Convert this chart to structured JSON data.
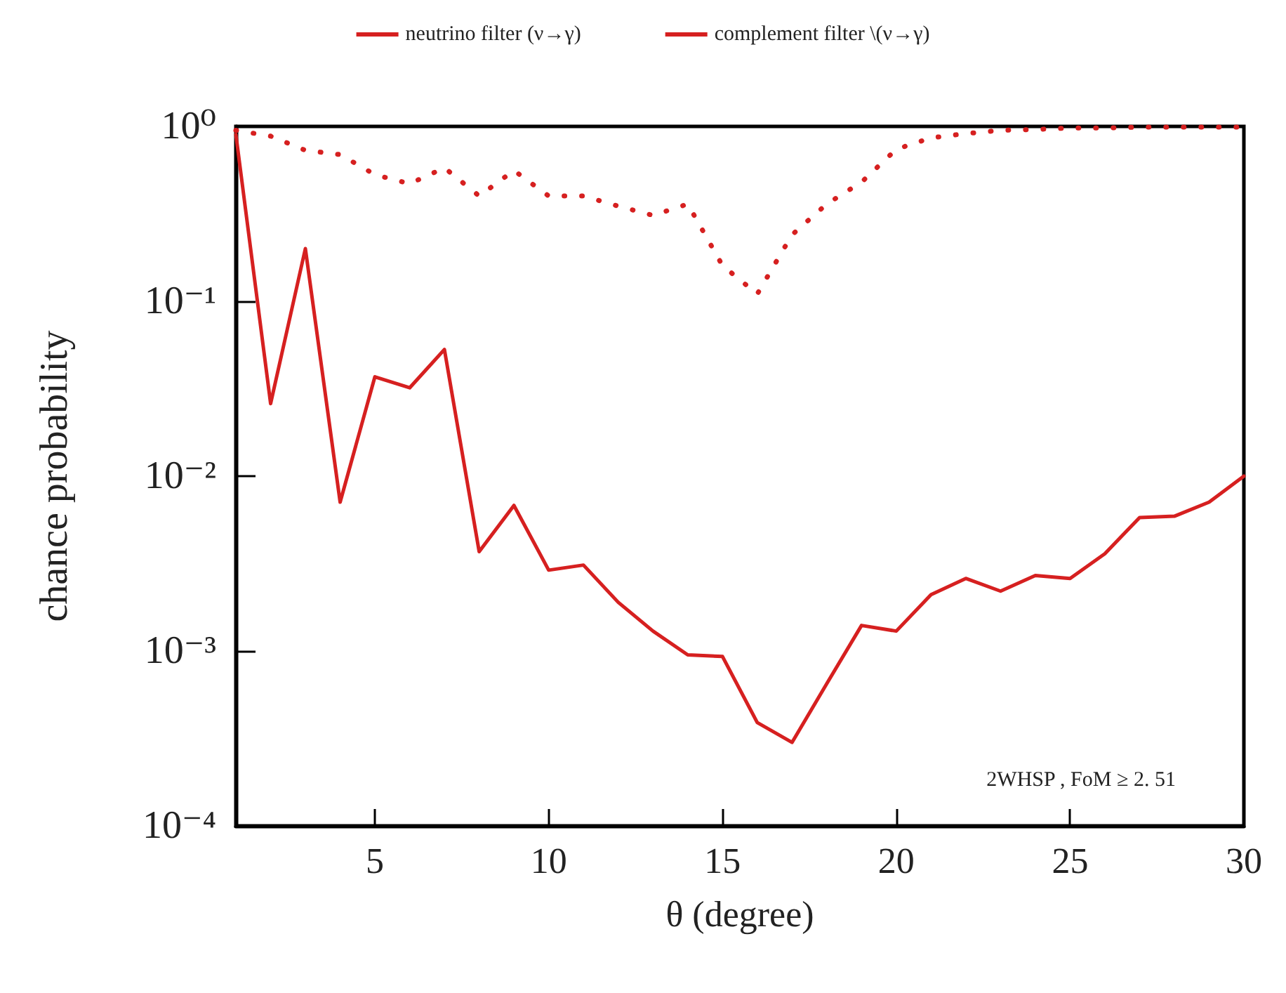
{
  "chart_data": {
    "type": "line",
    "xlabel": "θ (degree)",
    "ylabel": "chance probability",
    "log": "y",
    "legend": "top",
    "marker": "none",
    "grid": false,
    "xlim": [
      1,
      30
    ],
    "xticks": [
      5,
      10,
      15,
      20,
      25,
      30
    ],
    "ylim": [
      0.0001,
      1
    ],
    "yticks": [
      {
        "value": 1,
        "label": "10⁰"
      },
      {
        "value": 0.1,
        "label": "10⁻¹"
      },
      {
        "value": 0.01,
        "label": "10⁻²"
      },
      {
        "value": 0.001,
        "label": "10⁻³"
      },
      {
        "value": 0.0001,
        "label": "10⁻⁴"
      }
    ],
    "x": [
      1,
      2,
      3,
      4,
      5,
      6,
      7,
      8,
      9,
      10,
      11,
      12,
      13,
      14,
      15,
      16,
      17,
      18,
      19,
      20,
      21,
      22,
      23,
      24,
      25,
      26,
      27,
      28,
      29,
      30
    ],
    "series": [
      {
        "name": "neutrino filter (ν→γ)",
        "color": "#d62020",
        "line_style": "solid",
        "values": [
          0.9,
          0.026,
          0.2,
          0.0071,
          0.037,
          0.032,
          0.053,
          0.0037,
          0.0068,
          0.0029,
          0.0031,
          0.0019,
          0.0013,
          0.00095,
          0.00093,
          0.00039,
          0.0003,
          0.00065,
          0.0014,
          0.0013,
          0.0021,
          0.0026,
          0.0022,
          0.0027,
          0.0026,
          0.0036,
          0.0058,
          0.0059,
          0.0071,
          0.01
        ]
      },
      {
        "name": "complement filter \\(ν→γ)",
        "color": "#d62020",
        "line_style": "dotted",
        "values": [
          0.95,
          0.88,
          0.73,
          0.69,
          0.53,
          0.47,
          0.58,
          0.4,
          0.56,
          0.4,
          0.4,
          0.35,
          0.31,
          0.36,
          0.16,
          0.11,
          0.24,
          0.36,
          0.48,
          0.74,
          0.86,
          0.91,
          0.95,
          0.96,
          0.98,
          0.98,
          0.99,
          0.99,
          0.99,
          0.99
        ]
      }
    ],
    "annotations": [
      "2WHSP , FoM ≥ 2. 51"
    ]
  }
}
